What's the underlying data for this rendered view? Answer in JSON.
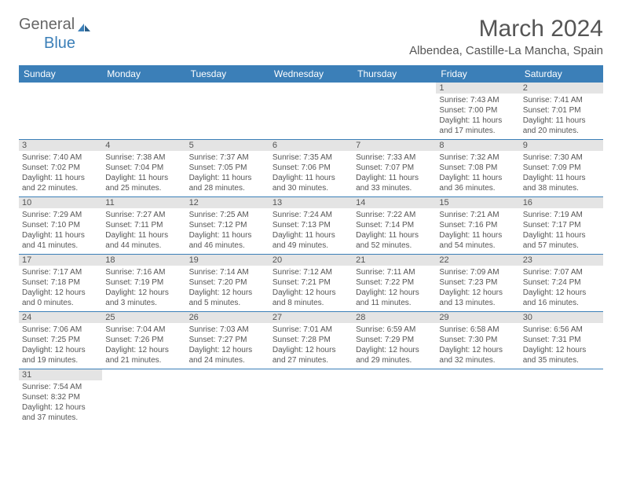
{
  "logo": {
    "part1": "General",
    "part2": "Blue"
  },
  "title": "March 2024",
  "location": "Albendea, Castille-La Mancha, Spain",
  "dayHeaders": [
    "Sunday",
    "Monday",
    "Tuesday",
    "Wednesday",
    "Thursday",
    "Friday",
    "Saturday"
  ],
  "colors": {
    "headerBg": "#3b7fb8",
    "headerText": "#ffffff",
    "dayNumBg": "#e4e4e4",
    "text": "#555555",
    "border": "#3b7fb8"
  },
  "weeks": [
    [
      null,
      null,
      null,
      null,
      null,
      {
        "num": "1",
        "sunrise": "Sunrise: 7:43 AM",
        "sunset": "Sunset: 7:00 PM",
        "daylight1": "Daylight: 11 hours",
        "daylight2": "and 17 minutes."
      },
      {
        "num": "2",
        "sunrise": "Sunrise: 7:41 AM",
        "sunset": "Sunset: 7:01 PM",
        "daylight1": "Daylight: 11 hours",
        "daylight2": "and 20 minutes."
      }
    ],
    [
      {
        "num": "3",
        "sunrise": "Sunrise: 7:40 AM",
        "sunset": "Sunset: 7:02 PM",
        "daylight1": "Daylight: 11 hours",
        "daylight2": "and 22 minutes."
      },
      {
        "num": "4",
        "sunrise": "Sunrise: 7:38 AM",
        "sunset": "Sunset: 7:04 PM",
        "daylight1": "Daylight: 11 hours",
        "daylight2": "and 25 minutes."
      },
      {
        "num": "5",
        "sunrise": "Sunrise: 7:37 AM",
        "sunset": "Sunset: 7:05 PM",
        "daylight1": "Daylight: 11 hours",
        "daylight2": "and 28 minutes."
      },
      {
        "num": "6",
        "sunrise": "Sunrise: 7:35 AM",
        "sunset": "Sunset: 7:06 PM",
        "daylight1": "Daylight: 11 hours",
        "daylight2": "and 30 minutes."
      },
      {
        "num": "7",
        "sunrise": "Sunrise: 7:33 AM",
        "sunset": "Sunset: 7:07 PM",
        "daylight1": "Daylight: 11 hours",
        "daylight2": "and 33 minutes."
      },
      {
        "num": "8",
        "sunrise": "Sunrise: 7:32 AM",
        "sunset": "Sunset: 7:08 PM",
        "daylight1": "Daylight: 11 hours",
        "daylight2": "and 36 minutes."
      },
      {
        "num": "9",
        "sunrise": "Sunrise: 7:30 AM",
        "sunset": "Sunset: 7:09 PM",
        "daylight1": "Daylight: 11 hours",
        "daylight2": "and 38 minutes."
      }
    ],
    [
      {
        "num": "10",
        "sunrise": "Sunrise: 7:29 AM",
        "sunset": "Sunset: 7:10 PM",
        "daylight1": "Daylight: 11 hours",
        "daylight2": "and 41 minutes."
      },
      {
        "num": "11",
        "sunrise": "Sunrise: 7:27 AM",
        "sunset": "Sunset: 7:11 PM",
        "daylight1": "Daylight: 11 hours",
        "daylight2": "and 44 minutes."
      },
      {
        "num": "12",
        "sunrise": "Sunrise: 7:25 AM",
        "sunset": "Sunset: 7:12 PM",
        "daylight1": "Daylight: 11 hours",
        "daylight2": "and 46 minutes."
      },
      {
        "num": "13",
        "sunrise": "Sunrise: 7:24 AM",
        "sunset": "Sunset: 7:13 PM",
        "daylight1": "Daylight: 11 hours",
        "daylight2": "and 49 minutes."
      },
      {
        "num": "14",
        "sunrise": "Sunrise: 7:22 AM",
        "sunset": "Sunset: 7:14 PM",
        "daylight1": "Daylight: 11 hours",
        "daylight2": "and 52 minutes."
      },
      {
        "num": "15",
        "sunrise": "Sunrise: 7:21 AM",
        "sunset": "Sunset: 7:16 PM",
        "daylight1": "Daylight: 11 hours",
        "daylight2": "and 54 minutes."
      },
      {
        "num": "16",
        "sunrise": "Sunrise: 7:19 AM",
        "sunset": "Sunset: 7:17 PM",
        "daylight1": "Daylight: 11 hours",
        "daylight2": "and 57 minutes."
      }
    ],
    [
      {
        "num": "17",
        "sunrise": "Sunrise: 7:17 AM",
        "sunset": "Sunset: 7:18 PM",
        "daylight1": "Daylight: 12 hours",
        "daylight2": "and 0 minutes."
      },
      {
        "num": "18",
        "sunrise": "Sunrise: 7:16 AM",
        "sunset": "Sunset: 7:19 PM",
        "daylight1": "Daylight: 12 hours",
        "daylight2": "and 3 minutes."
      },
      {
        "num": "19",
        "sunrise": "Sunrise: 7:14 AM",
        "sunset": "Sunset: 7:20 PM",
        "daylight1": "Daylight: 12 hours",
        "daylight2": "and 5 minutes."
      },
      {
        "num": "20",
        "sunrise": "Sunrise: 7:12 AM",
        "sunset": "Sunset: 7:21 PM",
        "daylight1": "Daylight: 12 hours",
        "daylight2": "and 8 minutes."
      },
      {
        "num": "21",
        "sunrise": "Sunrise: 7:11 AM",
        "sunset": "Sunset: 7:22 PM",
        "daylight1": "Daylight: 12 hours",
        "daylight2": "and 11 minutes."
      },
      {
        "num": "22",
        "sunrise": "Sunrise: 7:09 AM",
        "sunset": "Sunset: 7:23 PM",
        "daylight1": "Daylight: 12 hours",
        "daylight2": "and 13 minutes."
      },
      {
        "num": "23",
        "sunrise": "Sunrise: 7:07 AM",
        "sunset": "Sunset: 7:24 PM",
        "daylight1": "Daylight: 12 hours",
        "daylight2": "and 16 minutes."
      }
    ],
    [
      {
        "num": "24",
        "sunrise": "Sunrise: 7:06 AM",
        "sunset": "Sunset: 7:25 PM",
        "daylight1": "Daylight: 12 hours",
        "daylight2": "and 19 minutes."
      },
      {
        "num": "25",
        "sunrise": "Sunrise: 7:04 AM",
        "sunset": "Sunset: 7:26 PM",
        "daylight1": "Daylight: 12 hours",
        "daylight2": "and 21 minutes."
      },
      {
        "num": "26",
        "sunrise": "Sunrise: 7:03 AM",
        "sunset": "Sunset: 7:27 PM",
        "daylight1": "Daylight: 12 hours",
        "daylight2": "and 24 minutes."
      },
      {
        "num": "27",
        "sunrise": "Sunrise: 7:01 AM",
        "sunset": "Sunset: 7:28 PM",
        "daylight1": "Daylight: 12 hours",
        "daylight2": "and 27 minutes."
      },
      {
        "num": "28",
        "sunrise": "Sunrise: 6:59 AM",
        "sunset": "Sunset: 7:29 PM",
        "daylight1": "Daylight: 12 hours",
        "daylight2": "and 29 minutes."
      },
      {
        "num": "29",
        "sunrise": "Sunrise: 6:58 AM",
        "sunset": "Sunset: 7:30 PM",
        "daylight1": "Daylight: 12 hours",
        "daylight2": "and 32 minutes."
      },
      {
        "num": "30",
        "sunrise": "Sunrise: 6:56 AM",
        "sunset": "Sunset: 7:31 PM",
        "daylight1": "Daylight: 12 hours",
        "daylight2": "and 35 minutes."
      }
    ],
    [
      {
        "num": "31",
        "sunrise": "Sunrise: 7:54 AM",
        "sunset": "Sunset: 8:32 PM",
        "daylight1": "Daylight: 12 hours",
        "daylight2": "and 37 minutes."
      },
      null,
      null,
      null,
      null,
      null,
      null
    ]
  ]
}
